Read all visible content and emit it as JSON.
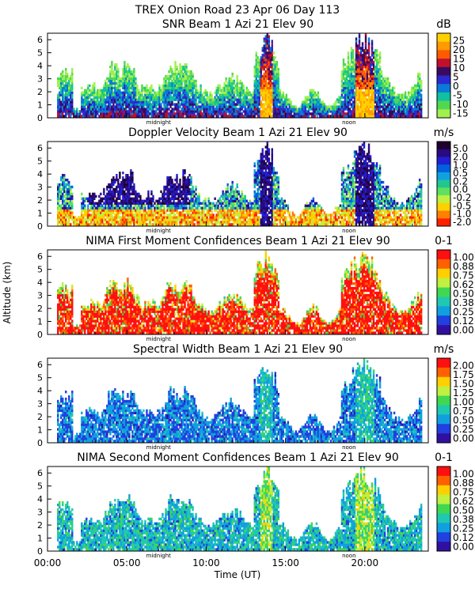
{
  "figure": {
    "title": "TREX Onion Road  23 Apr 06 Day 113",
    "xlabel": "Time (UT)",
    "ylabel": "Altitude (km)",
    "x_ticks": [
      "00:00",
      "05:00",
      "10:00",
      "15:00",
      "20:00"
    ],
    "midnight_label": "midnight",
    "noon_label": "noon"
  },
  "chart_data": [
    {
      "type": "heatmap",
      "title": "SNR Beam 1 Azi  21 Elev 90",
      "unit": "dB",
      "ylim": [
        0,
        6.5
      ],
      "y_ticks": [
        "0",
        "1",
        "2",
        "3",
        "4",
        "5",
        "6"
      ],
      "colorbar": {
        "labels": [
          "25",
          "20",
          "15",
          "10",
          "5",
          "0",
          "-5",
          "-10",
          "-15"
        ],
        "colors": [
          "#ffd000",
          "#ff9a00",
          "#ff5a00",
          "#c0102a",
          "#3a0a60",
          "#2a2ad0",
          "#0a7ad8",
          "#10c0a0",
          "#50d850",
          "#a0f050"
        ]
      }
    },
    {
      "type": "heatmap",
      "title": "Doppler Velocity Beam 1 Azi  21 Elev 90",
      "unit": "m/s",
      "ylim": [
        0,
        6.5
      ],
      "y_ticks": [
        "0",
        "1",
        "2",
        "3",
        "4",
        "5",
        "6"
      ],
      "colorbar": {
        "labels": [
          "5.0",
          "2.0",
          "1.0",
          "0.5",
          "0.2",
          "0.0",
          "-0.2",
          "-0.5",
          "-1.0",
          "-2.0"
        ],
        "colors": [
          "#200030",
          "#2a0a80",
          "#2020d0",
          "#0060e0",
          "#10a0e0",
          "#20c890",
          "#60e060",
          "#c0f040",
          "#ffd000",
          "#ff8000",
          "#ff2000"
        ]
      }
    },
    {
      "type": "heatmap",
      "title": "NIMA First Moment Confidences Beam 1 Azi  21 Elev 90",
      "unit": "0-1",
      "ylim": [
        0,
        6.5
      ],
      "y_ticks": [
        "0",
        "1",
        "2",
        "3",
        "4",
        "5",
        "6"
      ],
      "colorbar": {
        "labels": [
          "1.00",
          "0.88",
          "0.75",
          "0.62",
          "0.50",
          "0.38",
          "0.25",
          "0.12",
          "0.00"
        ],
        "colors": [
          "#ff1010",
          "#ff6000",
          "#ffd000",
          "#c0f040",
          "#40d850",
          "#20c8b0",
          "#10a0e0",
          "#2040e0",
          "#3010a0"
        ]
      }
    },
    {
      "type": "heatmap",
      "title": "Spectral Width Beam 1 Azi  21 Elev 90",
      "unit": "m/s",
      "ylim": [
        0,
        6.5
      ],
      "y_ticks": [
        "0",
        "1",
        "2",
        "3",
        "4",
        "5",
        "6"
      ],
      "colorbar": {
        "labels": [
          "2.00",
          "1.75",
          "1.50",
          "1.25",
          "1.00",
          "0.75",
          "0.50",
          "0.25",
          "0.00"
        ],
        "colors": [
          "#ff1010",
          "#ff6000",
          "#ffd000",
          "#c0f040",
          "#40d850",
          "#20c8b0",
          "#10a0e0",
          "#2040e0",
          "#3010a0"
        ]
      }
    },
    {
      "type": "heatmap",
      "title": "NIMA Second Moment Confidences Beam 1 Azi  21 Elev 90",
      "unit": "0-1",
      "ylim": [
        0,
        6.5
      ],
      "y_ticks": [
        "0",
        "1",
        "2",
        "3",
        "4",
        "5",
        "6"
      ],
      "colorbar": {
        "labels": [
          "1.00",
          "0.88",
          "0.75",
          "0.62",
          "0.50",
          "0.38",
          "0.25",
          "0.12",
          "0.00"
        ],
        "colors": [
          "#ff1010",
          "#ff6000",
          "#ffd000",
          "#c0f040",
          "#40d850",
          "#20c8b0",
          "#10a0e0",
          "#2040e0",
          "#3010a0"
        ]
      }
    }
  ]
}
